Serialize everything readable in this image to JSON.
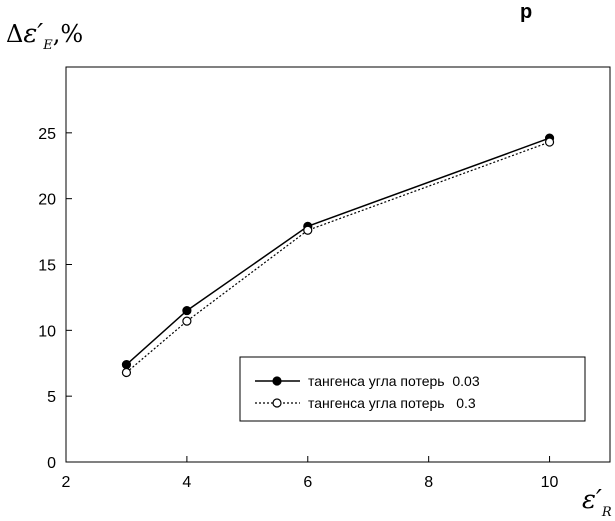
{
  "corner_text": "р",
  "chart_data": {
    "type": "line",
    "ylabel": {
      "delta": "Δ",
      "symbol": "ε′",
      "subscript": "E",
      "suffix": ",%"
    },
    "xlabel": {
      "symbol": "ε′",
      "subscript": "R"
    },
    "xlim": [
      2,
      11
    ],
    "ylim": [
      0,
      30
    ],
    "x_ticks": [
      2,
      4,
      6,
      8,
      10
    ],
    "y_ticks": [
      0,
      5,
      10,
      15,
      20,
      25
    ],
    "grid": false,
    "legend_position": "bottom-right",
    "series": [
      {
        "name": "тангенса угла потерь  0.03",
        "style": "solid",
        "marker": "filled-circle",
        "color": "#000000",
        "x": [
          3,
          4,
          6,
          10
        ],
        "y": [
          7.4,
          11.5,
          17.9,
          24.6
        ]
      },
      {
        "name": "тангенса угла потерь   0.3",
        "style": "dotted",
        "marker": "open-circle",
        "color": "#000000",
        "x": [
          3,
          4,
          6,
          10
        ],
        "y": [
          6.8,
          10.7,
          17.6,
          24.3
        ]
      }
    ]
  }
}
